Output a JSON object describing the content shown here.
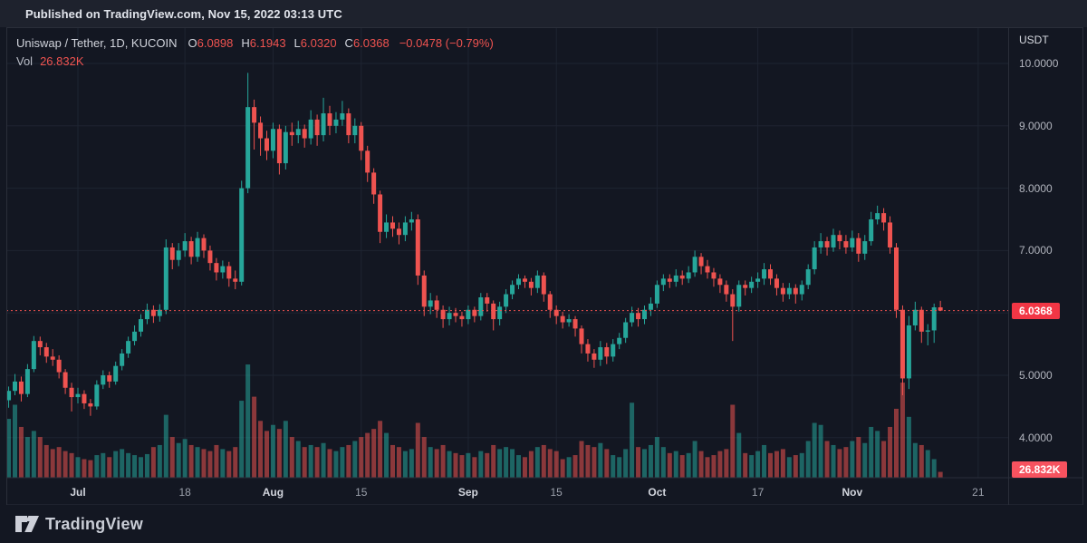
{
  "published_bar": {
    "text": "Published on TradingView.com, Nov 15, 2022 03:13 UTC"
  },
  "legend": {
    "symbol": "Uniswap / Tether, 1D, KUCOIN",
    "ohlc": [
      {
        "label": "O",
        "value": "6.0898"
      },
      {
        "label": "H",
        "value": "6.1943"
      },
      {
        "label": "L",
        "value": "6.0320"
      },
      {
        "label": "C",
        "value": "6.0368"
      }
    ],
    "change": "−0.0478 (−0.79%)",
    "vol_label": "Vol",
    "vol_value": "26.832K"
  },
  "price_axis": {
    "unit": "USDT",
    "levels": [
      {
        "label": "10.0000",
        "value": 10
      },
      {
        "label": "9.0000",
        "value": 9
      },
      {
        "label": "8.0000",
        "value": 8
      },
      {
        "label": "7.0000",
        "value": 7
      },
      {
        "label": "5.0000",
        "value": 5
      },
      {
        "label": "4.0000",
        "value": 4
      }
    ],
    "last_price_badge": {
      "label": "6.0368",
      "value": 6.0368
    },
    "volume_badge": {
      "label": "26.832K",
      "value_k": 26.832
    }
  },
  "time_axis": {
    "ticks": [
      {
        "label": "Jul",
        "day": 11,
        "major": true
      },
      {
        "label": "18",
        "day": 28,
        "major": false
      },
      {
        "label": "Aug",
        "day": 42,
        "major": true
      },
      {
        "label": "15",
        "day": 56,
        "major": false
      },
      {
        "label": "Sep",
        "day": 73,
        "major": true
      },
      {
        "label": "15",
        "day": 87,
        "major": false
      },
      {
        "label": "Oct",
        "day": 103,
        "major": true
      },
      {
        "label": "17",
        "day": 119,
        "major": false
      },
      {
        "label": "Nov",
        "day": 134,
        "major": true
      },
      {
        "label": "21",
        "day": 154,
        "major": false
      }
    ]
  },
  "footer": {
    "logo_text": "TradingView"
  },
  "colors": {
    "bg": "#131722",
    "bar_bg": "#1e222d",
    "border": "#2a2e39",
    "grid": "#1e2431",
    "up": "#26a69a",
    "down": "#ef5350",
    "vol_up": "rgba(38,166,154,0.55)",
    "vol_down": "rgba(239,83,80,0.55)",
    "price_line": "#ef5350",
    "badge_price": "#f23645",
    "badge_vol": "#f7525f",
    "text_primary": "#d1d4dc",
    "text_secondary": "#b2b5be"
  },
  "chart_data": {
    "type": "candlestick+volume",
    "title": "Uniswap / Tether, 1D, KUCOIN",
    "interval": "1D",
    "exchange": "KUCOIN",
    "quote_unit": "USDT",
    "start_date": "2022-06-20",
    "end_date": "2022-11-15",
    "ylim_visible": [
      3.35,
      10.55
    ],
    "price_gridlines": [
      10,
      9,
      8,
      7,
      6,
      5,
      4
    ],
    "last_price_line": 6.0368,
    "last_volume_k": 26.832,
    "columns": [
      "open",
      "high",
      "low",
      "close",
      "volume_k"
    ],
    "candles": [
      [
        4.6,
        4.82,
        4.48,
        4.75,
        290
      ],
      [
        4.75,
        5.02,
        4.68,
        4.9,
        360
      ],
      [
        4.9,
        4.98,
        4.58,
        4.7,
        250
      ],
      [
        4.7,
        5.18,
        4.65,
        5.1,
        200
      ],
      [
        5.1,
        5.63,
        5.05,
        5.55,
        230
      ],
      [
        5.55,
        5.62,
        5.32,
        5.45,
        200
      ],
      [
        5.45,
        5.52,
        5.2,
        5.3,
        160
      ],
      [
        5.3,
        5.42,
        5.15,
        5.25,
        140
      ],
      [
        5.25,
        5.32,
        4.95,
        5.05,
        150
      ],
      [
        5.05,
        5.1,
        4.7,
        4.8,
        130
      ],
      [
        4.8,
        4.88,
        4.42,
        4.65,
        120
      ],
      [
        4.65,
        4.8,
        4.55,
        4.7,
        100
      ],
      [
        4.7,
        4.76,
        4.46,
        4.55,
        90
      ],
      [
        4.55,
        4.62,
        4.35,
        4.5,
        85
      ],
      [
        4.5,
        4.92,
        4.45,
        4.85,
        110
      ],
      [
        4.85,
        5.08,
        4.78,
        5.0,
        120
      ],
      [
        5.0,
        5.06,
        4.8,
        4.9,
        100
      ],
      [
        4.9,
        5.22,
        4.85,
        5.15,
        130
      ],
      [
        5.15,
        5.42,
        5.08,
        5.35,
        140
      ],
      [
        5.35,
        5.62,
        5.28,
        5.55,
        120
      ],
      [
        5.55,
        5.8,
        5.48,
        5.7,
        110
      ],
      [
        5.7,
        5.98,
        5.62,
        5.9,
        100
      ],
      [
        5.9,
        6.15,
        5.82,
        6.05,
        115
      ],
      [
        6.05,
        6.12,
        5.84,
        5.95,
        150
      ],
      [
        5.95,
        6.14,
        5.86,
        6.05,
        160
      ],
      [
        6.05,
        7.18,
        5.98,
        7.05,
        310
      ],
      [
        7.05,
        7.12,
        6.7,
        6.85,
        200
      ],
      [
        6.85,
        7.12,
        6.75,
        7.0,
        170
      ],
      [
        7.0,
        7.28,
        6.9,
        7.15,
        190
      ],
      [
        7.15,
        7.22,
        6.78,
        6.9,
        160
      ],
      [
        6.9,
        7.3,
        6.82,
        7.2,
        150
      ],
      [
        7.2,
        7.26,
        6.88,
        7.0,
        140
      ],
      [
        7.0,
        7.08,
        6.68,
        6.8,
        130
      ],
      [
        6.8,
        6.88,
        6.52,
        6.65,
        160
      ],
      [
        6.65,
        6.84,
        6.55,
        6.75,
        140
      ],
      [
        6.75,
        6.82,
        6.42,
        6.55,
        130
      ],
      [
        6.55,
        6.68,
        6.38,
        6.5,
        150
      ],
      [
        6.5,
        8.12,
        6.44,
        8.0,
        380
      ],
      [
        8.0,
        9.85,
        7.92,
        9.3,
        560
      ],
      [
        9.3,
        9.42,
        8.62,
        9.05,
        400
      ],
      [
        9.05,
        9.15,
        8.52,
        8.8,
        280
      ],
      [
        8.8,
        8.92,
        8.45,
        8.6,
        230
      ],
      [
        8.6,
        9.05,
        8.48,
        8.95,
        260
      ],
      [
        8.95,
        9.02,
        8.22,
        8.4,
        240
      ],
      [
        8.4,
        9.0,
        8.3,
        8.9,
        280
      ],
      [
        8.9,
        9.05,
        8.68,
        8.85,
        200
      ],
      [
        8.85,
        9.08,
        8.72,
        8.95,
        180
      ],
      [
        8.95,
        9.02,
        8.65,
        8.8,
        150
      ],
      [
        8.8,
        9.25,
        8.7,
        9.1,
        160
      ],
      [
        9.1,
        9.18,
        8.68,
        8.85,
        150
      ],
      [
        8.85,
        9.45,
        8.75,
        9.2,
        170
      ],
      [
        9.2,
        9.32,
        8.85,
        9.0,
        140
      ],
      [
        9.0,
        9.22,
        8.88,
        9.1,
        130
      ],
      [
        9.1,
        9.4,
        9.0,
        9.2,
        150
      ],
      [
        9.2,
        9.28,
        8.72,
        8.85,
        160
      ],
      [
        8.85,
        9.12,
        8.72,
        9.0,
        180
      ],
      [
        9.0,
        9.06,
        8.45,
        8.6,
        200
      ],
      [
        8.6,
        8.68,
        8.1,
        8.25,
        220
      ],
      [
        8.25,
        8.32,
        7.75,
        7.9,
        240
      ],
      [
        7.9,
        7.96,
        7.12,
        7.3,
        280
      ],
      [
        7.3,
        7.58,
        7.2,
        7.45,
        220
      ],
      [
        7.45,
        7.55,
        7.22,
        7.35,
        160
      ],
      [
        7.35,
        7.45,
        7.1,
        7.25,
        150
      ],
      [
        7.25,
        7.55,
        7.15,
        7.45,
        130
      ],
      [
        7.45,
        7.62,
        7.32,
        7.5,
        140
      ],
      [
        7.5,
        7.58,
        6.45,
        6.6,
        270
      ],
      [
        6.6,
        6.68,
        5.95,
        6.1,
        200
      ],
      [
        6.1,
        6.32,
        5.98,
        6.2,
        150
      ],
      [
        6.2,
        6.28,
        5.92,
        6.05,
        140
      ],
      [
        6.05,
        6.12,
        5.76,
        5.9,
        160
      ],
      [
        5.9,
        6.1,
        5.8,
        6.0,
        130
      ],
      [
        6.0,
        6.08,
        5.85,
        5.95,
        120
      ],
      [
        5.95,
        6.02,
        5.78,
        5.9,
        110
      ],
      [
        5.9,
        6.12,
        5.82,
        6.05,
        120
      ],
      [
        6.05,
        6.1,
        5.85,
        5.95,
        100
      ],
      [
        5.95,
        6.32,
        5.88,
        6.25,
        130
      ],
      [
        6.25,
        6.32,
        6.02,
        6.15,
        120
      ],
      [
        6.15,
        6.2,
        5.72,
        5.9,
        160
      ],
      [
        5.9,
        6.18,
        5.8,
        6.1,
        140
      ],
      [
        6.1,
        6.38,
        6.0,
        6.3,
        150
      ],
      [
        6.3,
        6.52,
        6.22,
        6.45,
        140
      ],
      [
        6.45,
        6.62,
        6.38,
        6.55,
        110
      ],
      [
        6.55,
        6.6,
        6.4,
        6.5,
        100
      ],
      [
        6.5,
        6.56,
        6.28,
        6.4,
        130
      ],
      [
        6.4,
        6.68,
        6.32,
        6.6,
        150
      ],
      [
        6.6,
        6.65,
        6.18,
        6.3,
        160
      ],
      [
        6.3,
        6.35,
        5.92,
        6.05,
        140
      ],
      [
        6.05,
        6.12,
        5.82,
        5.95,
        130
      ],
      [
        5.95,
        6.02,
        5.75,
        5.85,
        90
      ],
      [
        5.85,
        5.98,
        5.78,
        5.9,
        100
      ],
      [
        5.9,
        5.95,
        5.62,
        5.75,
        110
      ],
      [
        5.75,
        5.8,
        5.35,
        5.5,
        180
      ],
      [
        5.5,
        5.58,
        5.22,
        5.35,
        160
      ],
      [
        5.35,
        5.42,
        5.12,
        5.25,
        150
      ],
      [
        5.25,
        5.55,
        5.15,
        5.45,
        170
      ],
      [
        5.45,
        5.52,
        5.18,
        5.3,
        140
      ],
      [
        5.3,
        5.58,
        5.22,
        5.5,
        110
      ],
      [
        5.5,
        5.68,
        5.42,
        5.6,
        100
      ],
      [
        5.6,
        5.92,
        5.52,
        5.85,
        140
      ],
      [
        5.85,
        6.1,
        5.78,
        6.0,
        370
      ],
      [
        6.0,
        6.08,
        5.78,
        5.9,
        150
      ],
      [
        5.9,
        6.12,
        5.82,
        6.05,
        140
      ],
      [
        6.05,
        6.25,
        5.95,
        6.15,
        160
      ],
      [
        6.15,
        6.52,
        6.08,
        6.45,
        200
      ],
      [
        6.45,
        6.62,
        6.35,
        6.55,
        150
      ],
      [
        6.55,
        6.62,
        6.4,
        6.5,
        120
      ],
      [
        6.5,
        6.7,
        6.42,
        6.6,
        130
      ],
      [
        6.6,
        6.68,
        6.45,
        6.55,
        110
      ],
      [
        6.55,
        6.75,
        6.48,
        6.65,
        120
      ],
      [
        6.65,
        7.0,
        6.58,
        6.9,
        180
      ],
      [
        6.9,
        6.96,
        6.62,
        6.75,
        130
      ],
      [
        6.75,
        6.85,
        6.55,
        6.65,
        100
      ],
      [
        6.65,
        6.72,
        6.42,
        6.55,
        110
      ],
      [
        6.55,
        6.62,
        6.32,
        6.45,
        130
      ],
      [
        6.45,
        6.52,
        6.18,
        6.3,
        140
      ],
      [
        6.3,
        6.38,
        5.55,
        6.1,
        360
      ],
      [
        6.1,
        6.52,
        6.02,
        6.45,
        220
      ],
      [
        6.45,
        6.52,
        6.28,
        6.4,
        120
      ],
      [
        6.4,
        6.58,
        6.32,
        6.5,
        110
      ],
      [
        6.5,
        6.65,
        6.4,
        6.55,
        130
      ],
      [
        6.55,
        6.8,
        6.45,
        6.7,
        160
      ],
      [
        6.7,
        6.78,
        6.45,
        6.55,
        120
      ],
      [
        6.55,
        6.62,
        6.28,
        6.4,
        130
      ],
      [
        6.4,
        6.48,
        6.18,
        6.3,
        140
      ],
      [
        6.3,
        6.48,
        6.22,
        6.4,
        100
      ],
      [
        6.4,
        6.46,
        6.15,
        6.3,
        110
      ],
      [
        6.3,
        6.52,
        6.2,
        6.45,
        120
      ],
      [
        6.45,
        6.78,
        6.38,
        6.7,
        180
      ],
      [
        6.7,
        7.15,
        6.62,
        7.05,
        270
      ],
      [
        7.05,
        7.28,
        6.95,
        7.15,
        260
      ],
      [
        7.15,
        7.22,
        6.92,
        7.05,
        180
      ],
      [
        7.05,
        7.35,
        6.98,
        7.25,
        160
      ],
      [
        7.25,
        7.32,
        7.02,
        7.15,
        140
      ],
      [
        7.15,
        7.25,
        6.95,
        7.05,
        150
      ],
      [
        7.05,
        7.32,
        6.98,
        7.2,
        180
      ],
      [
        7.2,
        7.28,
        6.82,
        6.95,
        200
      ],
      [
        6.95,
        7.25,
        6.85,
        7.15,
        170
      ],
      [
        7.15,
        7.62,
        7.08,
        7.5,
        250
      ],
      [
        7.5,
        7.72,
        7.42,
        7.6,
        230
      ],
      [
        7.6,
        7.68,
        7.32,
        7.45,
        180
      ],
      [
        7.45,
        7.55,
        6.95,
        7.05,
        250
      ],
      [
        7.05,
        7.12,
        5.92,
        6.05,
        340
      ],
      [
        6.05,
        6.12,
        4.68,
        4.95,
        470
      ],
      [
        4.95,
        5.95,
        4.78,
        5.8,
        300
      ],
      [
        5.8,
        6.18,
        5.72,
        6.05,
        170
      ],
      [
        6.05,
        6.1,
        5.52,
        5.7,
        160
      ],
      [
        5.7,
        5.82,
        5.48,
        5.72,
        135
      ],
      [
        5.72,
        6.15,
        5.52,
        6.09,
        90
      ],
      [
        6.0898,
        6.1943,
        6.032,
        6.0368,
        26.832
      ]
    ]
  }
}
